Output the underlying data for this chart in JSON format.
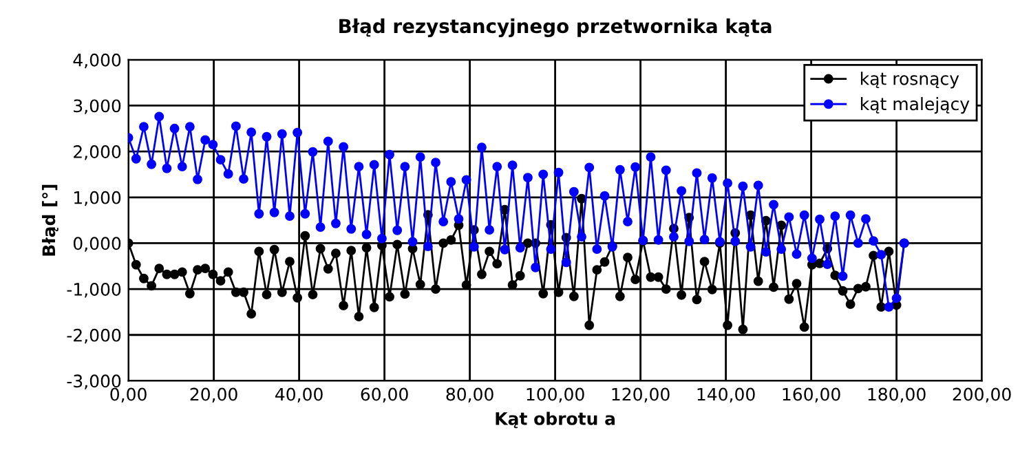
{
  "chart_data": {
    "type": "line",
    "title": "Błąd rezystancyjnego przetwornika kąta",
    "xlabel": "Kąt obrotu a",
    "ylabel": "Błąd [°]",
    "x": [
      0,
      1.8,
      3.6,
      5.4,
      7.2,
      9,
      10.8,
      12.6,
      14.4,
      16.2,
      18,
      19.8,
      21.6,
      23.4,
      25.2,
      27,
      28.8,
      30.6,
      32.4,
      34.2,
      36,
      37.8,
      39.6,
      41.4,
      43.2,
      45,
      46.8,
      48.6,
      50.4,
      52.2,
      54,
      55.8,
      57.6,
      59.4,
      61.2,
      63,
      64.8,
      66.6,
      68.4,
      70.2,
      72,
      73.8,
      75.6,
      77.4,
      79.2,
      81,
      82.8,
      84.6,
      86.4,
      88.2,
      90,
      91.8,
      93.6,
      95.4,
      97.2,
      99,
      100.8,
      102.6,
      104.4,
      106.2,
      108,
      109.8,
      111.6,
      113.4,
      115.2,
      117,
      118.8,
      120.6,
      122.4,
      124.2,
      126,
      127.8,
      129.6,
      131.4,
      133.2,
      135,
      136.8,
      138.6,
      140.4,
      142.2,
      144,
      145.8,
      147.6,
      149.4,
      151.2,
      153,
      154.8,
      156.6,
      158.4,
      160.2,
      162,
      163.8,
      165.6,
      167.4,
      169.2,
      171,
      172.8,
      174.6,
      176.4,
      178.2,
      180,
      181.8
    ],
    "series": [
      {
        "name": "kąt rosnący",
        "color": "#000000",
        "values": [
          0,
          -0.47,
          -0.77,
          -0.93,
          -0.55,
          -0.68,
          -0.68,
          -0.63,
          -1.1,
          -0.58,
          -0.55,
          -0.68,
          -0.82,
          -0.63,
          -1.07,
          -1.07,
          -1.54,
          -0.18,
          -1.12,
          -0.14,
          -1.07,
          -0.4,
          -1.19,
          0.16,
          -1.12,
          -0.12,
          -0.56,
          -0.22,
          -1.36,
          -0.16,
          -1.6,
          -0.1,
          -1.4,
          -0.05,
          -1.17,
          -0.03,
          -1.11,
          -0.12,
          -0.9,
          0.62,
          -1.0,
          0.0,
          0.07,
          0.39,
          -0.91,
          0.29,
          -0.68,
          -0.18,
          -0.45,
          0.73,
          -0.91,
          -0.71,
          0.0,
          0.0,
          -1.1,
          0.4,
          -1.07,
          0.12,
          -1.16,
          0.97,
          -1.79,
          -0.58,
          -0.41,
          -0.06,
          -1.16,
          -0.31,
          -0.79,
          0.05,
          -0.74,
          -0.74,
          -1.0,
          0.32,
          -1.13,
          0.56,
          -1.23,
          -0.4,
          -1.01,
          0.0,
          -1.79,
          0.22,
          -1.88,
          0.61,
          -0.83,
          0.49,
          -0.96,
          0.39,
          -1.22,
          -0.88,
          -1.83,
          -0.47,
          -0.44,
          -0.12,
          -0.7,
          -1.04,
          -1.33,
          -0.99,
          -0.95,
          -0.27,
          -1.39,
          -0.18,
          -1.35,
          0.0
        ]
      },
      {
        "name": "kąt malejący",
        "color": "#0000ff",
        "values": [
          2.3,
          1.84,
          2.54,
          1.72,
          2.76,
          1.63,
          2.5,
          1.67,
          2.54,
          1.39,
          2.25,
          2.15,
          1.82,
          1.51,
          2.55,
          1.4,
          2.42,
          0.64,
          2.32,
          0.67,
          2.38,
          0.59,
          2.41,
          0.64,
          1.99,
          0.35,
          2.22,
          0.43,
          2.1,
          0.31,
          1.67,
          0.19,
          1.71,
          0.1,
          1.93,
          0.28,
          1.67,
          0.03,
          1.88,
          -0.07,
          1.76,
          0.47,
          1.34,
          0.53,
          1.38,
          -0.08,
          2.09,
          0.29,
          1.67,
          -0.14,
          1.7,
          -0.1,
          1.43,
          -0.53,
          1.5,
          -0.13,
          1.54,
          -0.42,
          1.12,
          0.14,
          1.65,
          -0.13,
          1.03,
          -0.08,
          1.6,
          0.47,
          1.66,
          0.06,
          1.88,
          0.07,
          1.59,
          0.14,
          1.14,
          0.04,
          1.53,
          0.08,
          1.42,
          0.03,
          1.31,
          0.04,
          1.24,
          -0.08,
          1.26,
          -0.19,
          0.84,
          -0.13,
          0.57,
          -0.24,
          0.61,
          -0.33,
          0.52,
          -0.46,
          0.59,
          -0.72,
          0.61,
          0.0,
          0.53,
          0.05,
          -0.25,
          -1.39,
          -1.2,
          0.0
        ]
      }
    ],
    "xlim": [
      0,
      200
    ],
    "xticks": [
      {
        "value": 0,
        "label": "0,00"
      },
      {
        "value": 20,
        "label": "20,00"
      },
      {
        "value": 40,
        "label": "40,00"
      },
      {
        "value": 60,
        "label": "60,00"
      },
      {
        "value": 80,
        "label": "80,00"
      },
      {
        "value": 100,
        "label": "100,00"
      },
      {
        "value": 120,
        "label": "120,00"
      },
      {
        "value": 140,
        "label": "140,00"
      },
      {
        "value": 160,
        "label": "160,00"
      },
      {
        "value": 180,
        "label": "180,00"
      },
      {
        "value": 200,
        "label": "200,00"
      }
    ],
    "ylim": [
      -3,
      4
    ],
    "yticks": [
      {
        "value": -3,
        "label": "-3,000"
      },
      {
        "value": -2,
        "label": "-2,000"
      },
      {
        "value": -1,
        "label": "-1,000"
      },
      {
        "value": 0,
        "label": "0,000"
      },
      {
        "value": 1,
        "label": "1,000"
      },
      {
        "value": 2,
        "label": "2,000"
      },
      {
        "value": 3,
        "label": "3,000"
      },
      {
        "value": 4,
        "label": "4,000"
      }
    ],
    "grid": true,
    "legend": "top right",
    "marker": "circle",
    "line_style": "solid"
  }
}
